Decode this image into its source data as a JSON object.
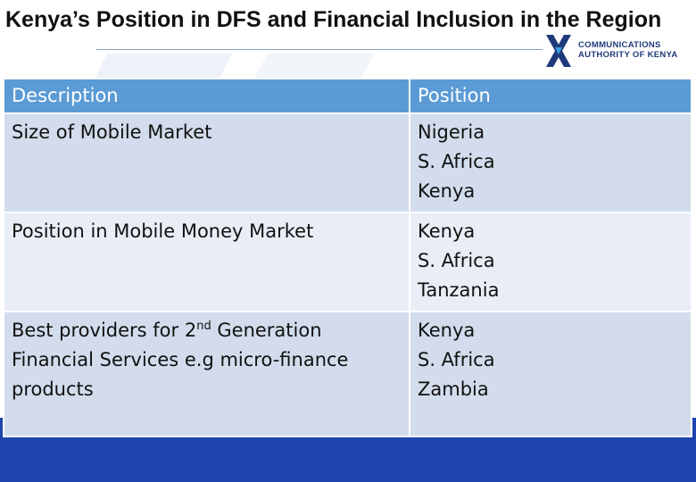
{
  "slide": {
    "title": "Kenya’s Position in DFS and Financial Inclusion in the Region",
    "logo": {
      "line1": "COMMUNICATIONS",
      "line2": "AUTHORITY OF KENYA",
      "icon": "x-mark-icon",
      "colors": {
        "dark": "#1f3a7a",
        "light": "#3aa0dc"
      }
    }
  },
  "table": {
    "headers": [
      "Description",
      "Position"
    ],
    "rows": [
      {
        "description": "Size of Mobile Market",
        "positions": [
          "Nigeria",
          "S. Africa",
          "Kenya"
        ]
      },
      {
        "description": "Position in Mobile Money Market",
        "positions": [
          "Kenya",
          "S. Africa",
          "Tanzania"
        ]
      },
      {
        "description_parts": [
          "Best providers for 2",
          "nd",
          " Generation Financial Services e.g micro-finance products"
        ],
        "positions": [
          "Kenya",
          "S. Africa",
          "Zambia"
        ]
      }
    ]
  },
  "colors": {
    "header": "#5b9bd5",
    "row_dark": "#d2dcec",
    "row_light": "#e9eef6",
    "footer": "#1f44b0"
  }
}
